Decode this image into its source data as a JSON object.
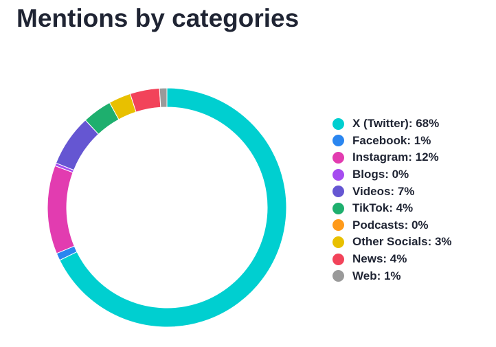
{
  "title": "Mentions by categories",
  "chart_data": {
    "type": "pie",
    "variant": "donut",
    "title": "Mentions by categories",
    "legend_position": "right",
    "slices": [
      {
        "label": "X (Twitter)",
        "value": 68,
        "display": "X (Twitter): 68%",
        "color": "#00cfd0"
      },
      {
        "label": "Facebook",
        "value": 1,
        "display": "Facebook: 1%",
        "color": "#2a86f0"
      },
      {
        "label": "Instagram",
        "value": 12,
        "display": "Instagram: 12%",
        "color": "#e23cb0"
      },
      {
        "label": "Blogs",
        "value": 0.4,
        "display": "Blogs: 0%",
        "color": "#a64cf0"
      },
      {
        "label": "Videos",
        "value": 7,
        "display": "Videos: 7%",
        "color": "#6556d2"
      },
      {
        "label": "TikTok",
        "value": 4,
        "display": "TikTok: 4%",
        "color": "#1eaf6e"
      },
      {
        "label": "Podcasts",
        "value": 0,
        "display": "Podcasts: 0%",
        "color": "#ff9a1a"
      },
      {
        "label": "Other Socials",
        "value": 3,
        "display": "Other Socials: 3%",
        "color": "#e8c000"
      },
      {
        "label": "News",
        "value": 4,
        "display": "News: 4%",
        "color": "#f2435a"
      },
      {
        "label": "Web",
        "value": 1,
        "display": "Web: 1%",
        "color": "#9a9a9a"
      }
    ]
  }
}
